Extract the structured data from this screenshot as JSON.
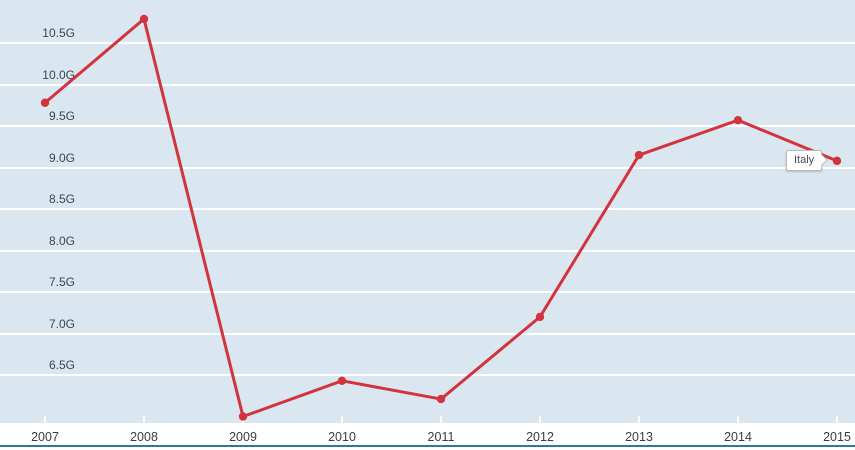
{
  "chart_data": {
    "type": "line",
    "categories": [
      "2007",
      "2008",
      "2009",
      "2010",
      "2011",
      "2012",
      "2013",
      "2014",
      "2015"
    ],
    "series": [
      {
        "name": "Italy",
        "values": [
          9.78,
          10.79,
          6.0,
          6.43,
          6.21,
          7.2,
          9.15,
          9.57,
          9.08
        ]
      }
    ],
    "y_axis": {
      "ticks": [
        "10.5G",
        "10.0G",
        "9.5G",
        "9.0G",
        "8.5G",
        "8.0G",
        "7.5G",
        "7.0G",
        "6.5G"
      ],
      "value_suffix": "G",
      "ylim": [
        5.92,
        10.85
      ]
    },
    "x_axis": {
      "ticks": [
        "2007",
        "2008",
        "2009",
        "2010",
        "2011",
        "2012",
        "2013",
        "2014",
        "2015"
      ]
    },
    "grid": "horizontal",
    "legend": "inline-tooltip-on-last-point"
  },
  "tooltip": {
    "label": "Italy"
  },
  "colors": {
    "series_line": "#d2343e",
    "data_point": "#d2343e",
    "plot_background": "#dbe7f0",
    "gridline": "#ffffff",
    "axis_baseline": "#2e7a90",
    "tick_label_color": "#3a464f",
    "year_label_color": "#3c3c3c",
    "tooltip_border": "#b9b9b9",
    "tooltip_text": "#4a4a4a"
  }
}
